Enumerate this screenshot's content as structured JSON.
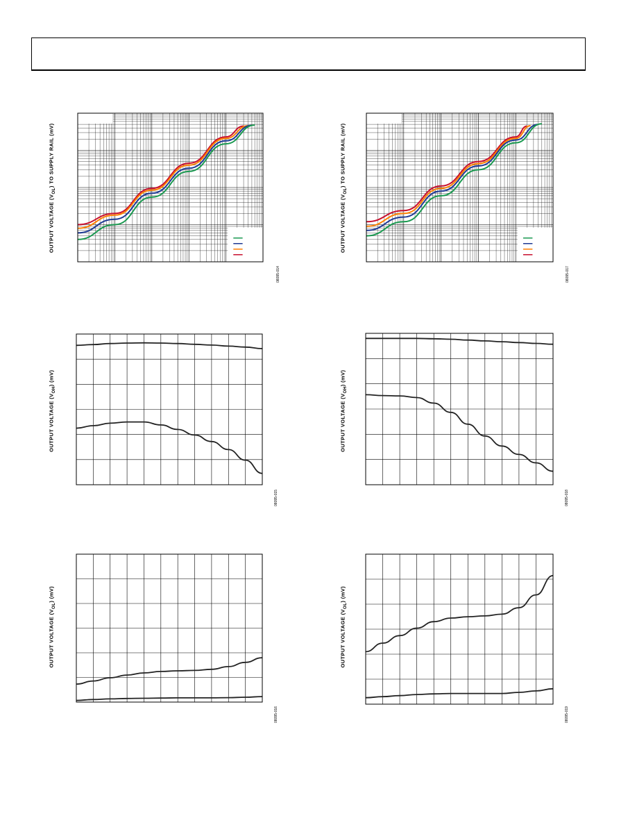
{
  "chart_data": [
    {
      "type": "line",
      "panel": "top-left",
      "ylabel": "OUTPUT VOLTAGE (Vₒʟ) TO SUPPLY RAIL (mV)",
      "ylabel_plain": "OUTPUT VOLTAGE  (V",
      "ylabel_sub": "OL",
      "ylabel_tail": ")  TO SUPPLY RAIL  (mV)",
      "figure_id": "08095-014",
      "log_x": true,
      "log_y": true,
      "grid": true,
      "legend": "bottom-right",
      "xlim": [
        0.001,
        100
      ],
      "ylim": [
        1,
        10000
      ],
      "series": [
        {
          "color": "#c8102e",
          "x": [
            0.001,
            0.01,
            0.1,
            1,
            10,
            30
          ],
          "y": [
            10,
            20,
            95,
            450,
            2300,
            4500
          ]
        },
        {
          "color": "#ff7f00",
          "x": [
            0.001,
            0.01,
            0.1,
            1,
            10,
            40
          ],
          "y": [
            8,
            18,
            85,
            400,
            2100,
            4600
          ]
        },
        {
          "color": "#1f3a93",
          "x": [
            0.001,
            0.01,
            0.1,
            1,
            10,
            50
          ],
          "y": [
            6,
            14,
            70,
            330,
            1800,
            4700
          ]
        },
        {
          "color": "#1a9950",
          "x": [
            0.001,
            0.01,
            0.1,
            1,
            10,
            60
          ],
          "y": [
            4,
            10,
            55,
            270,
            1500,
            4800
          ]
        }
      ]
    },
    {
      "type": "line",
      "panel": "top-right",
      "ylabel_plain": "OUTPUT VOLTAGE  (V",
      "ylabel_sub": "OL",
      "ylabel_tail": ")  TO SUPPLY RAIL  (mV)",
      "figure_id": "08095-017",
      "log_x": true,
      "log_y": true,
      "grid": true,
      "legend": "bottom-right",
      "xlim": [
        0.001,
        100
      ],
      "ylim": [
        1,
        10000
      ],
      "series": [
        {
          "color": "#c8102e",
          "x": [
            0.001,
            0.01,
            0.1,
            1,
            10,
            20
          ],
          "y": [
            12,
            24,
            110,
            500,
            2300,
            4500
          ]
        },
        {
          "color": "#ff7f00",
          "x": [
            0.001,
            0.01,
            0.1,
            1,
            10,
            25
          ],
          "y": [
            9,
            20,
            95,
            440,
            2100,
            4600
          ]
        },
        {
          "color": "#1f3a93",
          "x": [
            0.001,
            0.01,
            0.1,
            1,
            10,
            40
          ],
          "y": [
            7,
            16,
            80,
            380,
            1900,
            5000
          ]
        },
        {
          "color": "#1a9950",
          "x": [
            0.001,
            0.01,
            0.1,
            1,
            10,
            50
          ],
          "y": [
            5,
            12,
            60,
            300,
            1600,
            5200
          ]
        }
      ]
    },
    {
      "type": "line",
      "panel": "middle-left",
      "ylabel_plain": "OUTPUT VOLTAGE (V",
      "ylabel_sub": "OH",
      "ylabel_tail": ") (mV)",
      "figure_id": "08095-015",
      "grid": true,
      "xlim": [
        0,
        11
      ],
      "ylim": [
        0,
        6
      ],
      "series": [
        {
          "color": "#222222",
          "x": [
            0,
            1,
            2,
            3,
            4,
            5,
            6,
            7,
            8,
            9,
            10,
            11
          ],
          "y": [
            5.55,
            5.58,
            5.62,
            5.64,
            5.65,
            5.64,
            5.62,
            5.59,
            5.56,
            5.52,
            5.48,
            5.42
          ]
        },
        {
          "color": "#222222",
          "x": [
            0,
            1,
            2,
            3,
            4,
            5,
            6,
            7,
            8,
            9,
            10,
            11
          ],
          "y": [
            2.25,
            2.35,
            2.45,
            2.5,
            2.5,
            2.38,
            2.2,
            1.98,
            1.72,
            1.4,
            0.98,
            0.45
          ]
        }
      ]
    },
    {
      "type": "line",
      "panel": "middle-right",
      "ylabel_plain": "OUTPUT VOLTAGE (V",
      "ylabel_sub": "OH",
      "ylabel_tail": ") (mV)",
      "figure_id": "08095-018",
      "grid": true,
      "xlim": [
        0,
        11
      ],
      "ylim": [
        0,
        9
      ],
      "series": [
        {
          "color": "#222222",
          "x": [
            0,
            1,
            2,
            3,
            4,
            5,
            6,
            7,
            8,
            9,
            10,
            11
          ],
          "y": [
            8.7,
            8.7,
            8.7,
            8.7,
            8.68,
            8.65,
            8.6,
            8.55,
            8.5,
            8.45,
            8.4,
            8.35
          ]
        },
        {
          "color": "#222222",
          "x": [
            0,
            1,
            2,
            3,
            4,
            5,
            6,
            7,
            8,
            9,
            10,
            11
          ],
          "y": [
            5.35,
            5.3,
            5.28,
            5.18,
            4.85,
            4.3,
            3.6,
            2.9,
            2.3,
            1.8,
            1.3,
            0.8
          ]
        }
      ]
    },
    {
      "type": "line",
      "panel": "bottom-left",
      "ylabel_plain": "OUTPUT VOLTAGE (V",
      "ylabel_sub": "OL",
      "ylabel_tail": ") (mV)",
      "figure_id": "08095-016",
      "grid": true,
      "xlim": [
        0,
        11
      ],
      "ylim": [
        0,
        7
      ],
      "series": [
        {
          "color": "#222222",
          "x": [
            0,
            1,
            2,
            3,
            4,
            5,
            6,
            7,
            8,
            9,
            10,
            11
          ],
          "y": [
            0.85,
            1.0,
            1.15,
            1.28,
            1.38,
            1.45,
            1.48,
            1.5,
            1.55,
            1.68,
            1.88,
            2.1
          ]
        },
        {
          "color": "#222222",
          "x": [
            0,
            1,
            2,
            3,
            4,
            5,
            6,
            7,
            8,
            9,
            10,
            11
          ],
          "y": [
            0.08,
            0.12,
            0.15,
            0.17,
            0.18,
            0.19,
            0.2,
            0.2,
            0.2,
            0.21,
            0.23,
            0.26
          ]
        }
      ]
    },
    {
      "type": "line",
      "panel": "bottom-right",
      "ylabel_plain": "OUTPUT VOLTAGE (V",
      "ylabel_sub": "OL",
      "ylabel_tail": ") (mV)",
      "figure_id": "08095-019",
      "grid": true,
      "xlim": [
        0,
        11
      ],
      "ylim": [
        0,
        7
      ],
      "series": [
        {
          "color": "#222222",
          "x": [
            0,
            1,
            2,
            3,
            4,
            5,
            6,
            7,
            8,
            9,
            10,
            11
          ],
          "y": [
            2.45,
            2.85,
            3.2,
            3.55,
            3.85,
            4.02,
            4.08,
            4.12,
            4.2,
            4.5,
            5.1,
            6.0
          ]
        },
        {
          "color": "#222222",
          "x": [
            0,
            1,
            2,
            3,
            4,
            5,
            6,
            7,
            8,
            9,
            10,
            11
          ],
          "y": [
            0.3,
            0.35,
            0.4,
            0.45,
            0.48,
            0.5,
            0.5,
            0.5,
            0.5,
            0.55,
            0.62,
            0.72
          ]
        }
      ]
    }
  ]
}
